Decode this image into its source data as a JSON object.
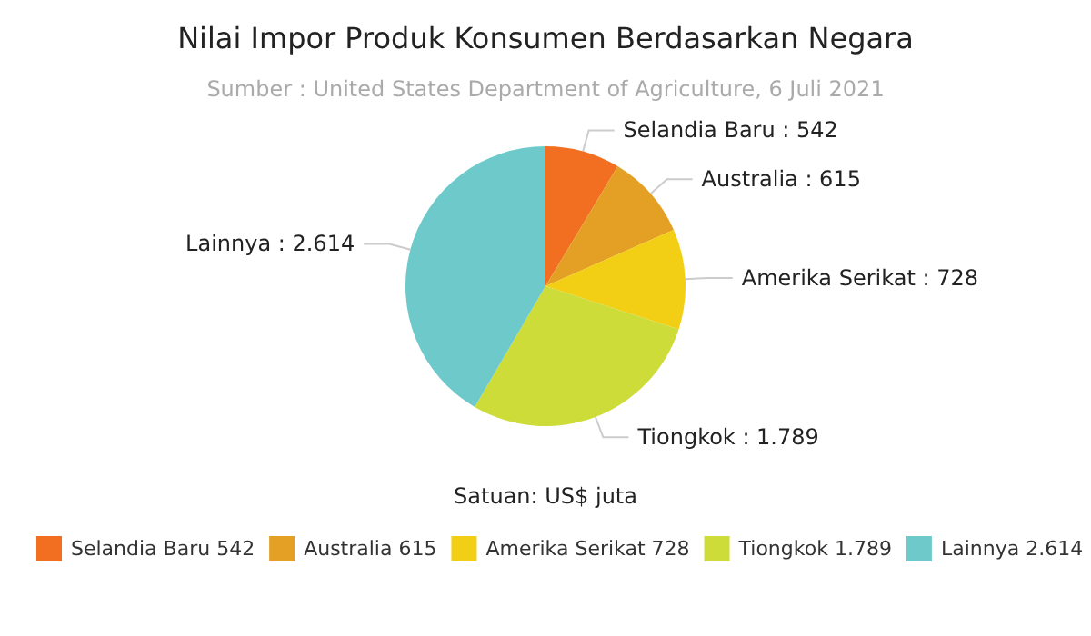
{
  "chart_data": {
    "type": "pie",
    "title": "Nilai Impor Produk Konsumen Berdasarkan Negara",
    "subtitle": "Sumber : United States Department of Agriculture, 6 Juli 2021",
    "categories": [
      "Selandia Baru",
      "Australia",
      "Amerika Serikat",
      "Tiongkok",
      "Lainnya"
    ],
    "values": [
      542,
      615,
      728,
      1789,
      2614
    ],
    "value_labels": [
      "542",
      "615",
      "728",
      "1.789",
      "2.614"
    ],
    "colors": [
      "#f26f22",
      "#e3a024",
      "#f2cf14",
      "#cddc39",
      "#6ecaca"
    ],
    "annotations": [
      "Satuan: US$ juta"
    ],
    "legend": "bottom"
  }
}
